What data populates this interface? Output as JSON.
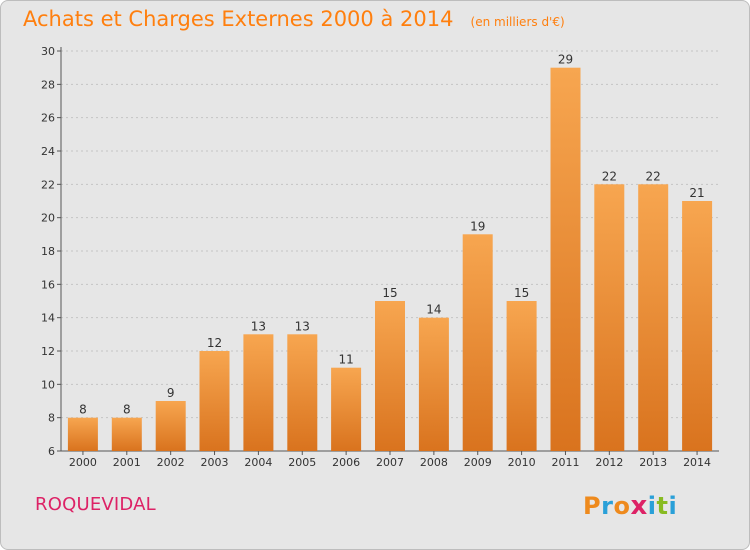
{
  "chart": {
    "title": "Achats et Charges Externes 2000 à 2014",
    "subtitle": "(en milliers d'€)",
    "commune": "ROQUEVIDAL",
    "logo_text": "Proxiti"
  },
  "colors": {
    "title": "#ff7f0e",
    "commune": "#dd2266",
    "bar_light": "#f7a650",
    "bar_dark": "#d9731e",
    "plot_bg": "#e6e6e6",
    "logo": [
      "#ee8a1d",
      "#2aa0d8",
      "#ee8a1d",
      "#dd2266",
      "#2aa0d8",
      "#88bb22",
      "#2aa0d8"
    ]
  },
  "chart_data": {
    "type": "bar",
    "title": "Achats et Charges Externes 2000 à 2014",
    "subtitle": "(en milliers d'€)",
    "categories": [
      "2000",
      "2001",
      "2002",
      "2003",
      "2004",
      "2005",
      "2006",
      "2007",
      "2008",
      "2009",
      "2010",
      "2011",
      "2012",
      "2013",
      "2014"
    ],
    "values": [
      8,
      8,
      9,
      12,
      13,
      13,
      11,
      15,
      14,
      19,
      15,
      29,
      22,
      22,
      21
    ],
    "ylim": [
      6,
      30
    ],
    "yticks": [
      6,
      8,
      10,
      12,
      14,
      16,
      18,
      20,
      22,
      24,
      26,
      28,
      30
    ],
    "xlabel": "",
    "ylabel": "",
    "grid": true,
    "data_labels": true
  }
}
